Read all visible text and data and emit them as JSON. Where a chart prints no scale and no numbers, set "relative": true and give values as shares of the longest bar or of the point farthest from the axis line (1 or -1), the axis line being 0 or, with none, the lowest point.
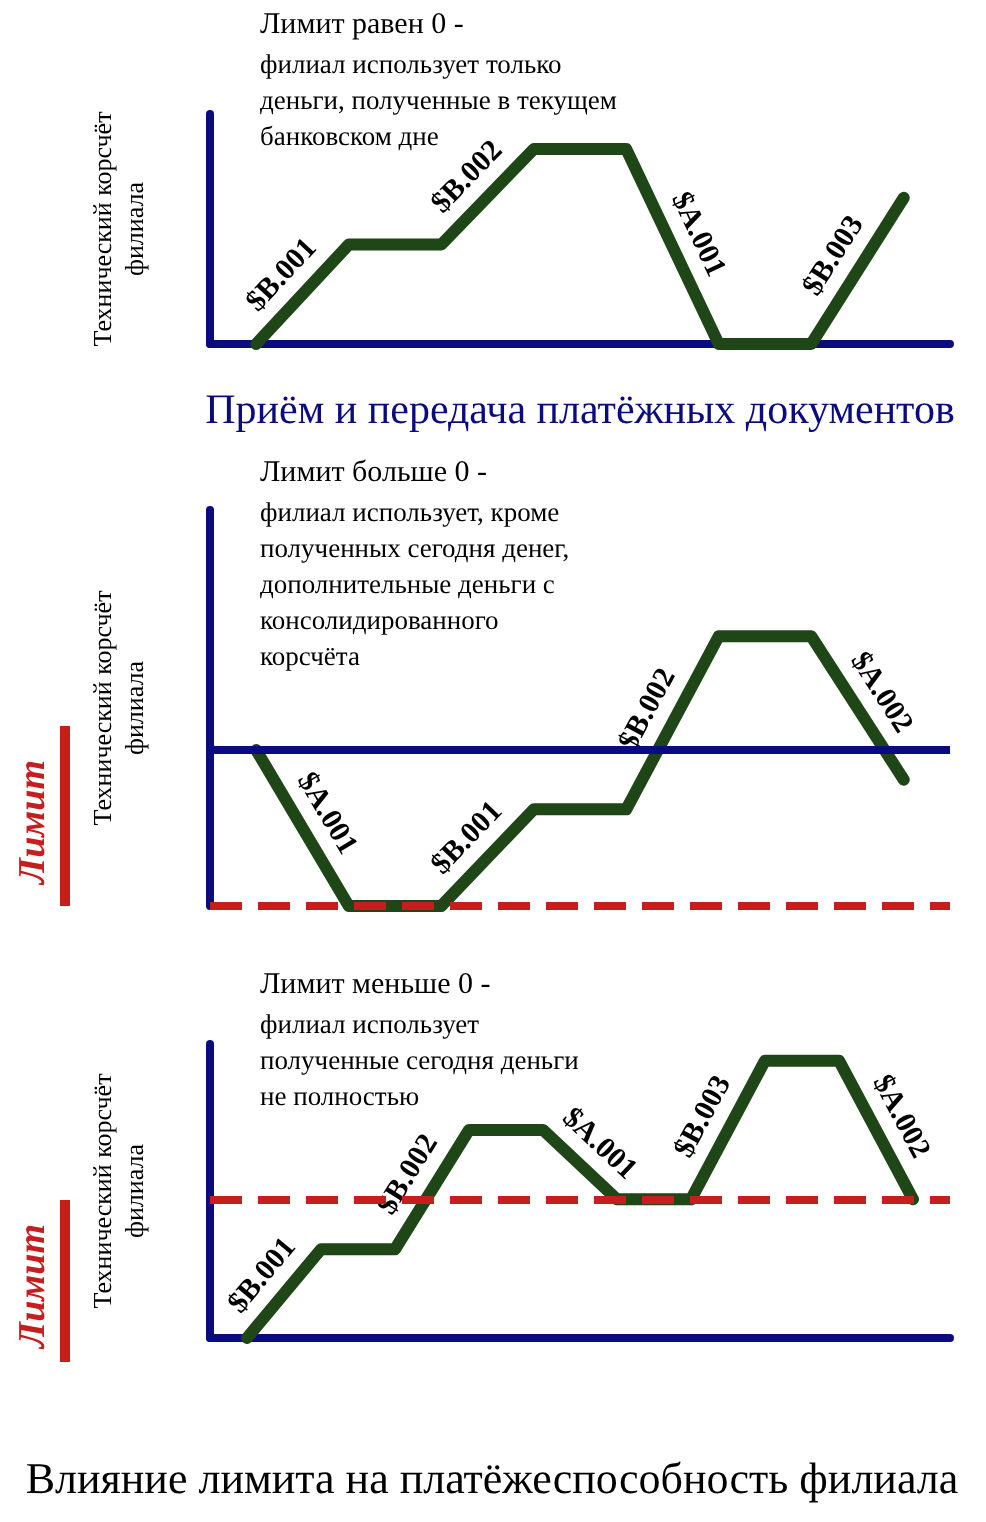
{
  "chart_data": [
    {
      "type": "line",
      "relative": true,
      "title": "Лимит равен 0 -",
      "subtitle": "филиал использует только деньги, полученные в текущем банковском дне",
      "xlabel": "Приём и передача платёжных документов",
      "ylabel": "Технический корсчёт филиала",
      "categories": [
        null,
        null,
        null,
        null,
        null,
        null,
        null,
        null
      ],
      "series": [
        {
          "color": "#1e4616",
          "values": [
            0,
            0.51,
            0.51,
            1,
            1,
            0,
            0,
            0.75
          ]
        }
      ],
      "annotations": [
        "$B.001",
        "$B.002",
        "$A.001",
        "$B.003"
      ],
      "marker": "none"
    },
    {
      "type": "line",
      "relative": true,
      "title": "Лимит больше 0 -",
      "subtitle": "филиал использует, кроме полученных сегодня денег, дополнительные деньги с консолидированного корсчёта",
      "ylabel": "Технический корсчёт филиала",
      "categories": [
        null,
        null,
        null,
        null,
        null,
        null,
        null,
        null
      ],
      "series": [
        {
          "color": "#1e4616",
          "values": [
            0,
            -1,
            -1,
            -0.38,
            -0.38,
            0.73,
            0.73,
            -0.19
          ]
        }
      ],
      "ref_lines": [
        {
          "axis": "y",
          "value": -1,
          "label": "Лимит",
          "color": "#c41e1e",
          "line_style": "dashed"
        },
        {
          "axis": "y",
          "value": 0,
          "color": "#0b0b80",
          "line_style": "solid"
        }
      ],
      "annotations": [
        "$A.001",
        "$B.001",
        "$B.002",
        "$A.002"
      ],
      "marker": "none"
    },
    {
      "type": "line",
      "relative": true,
      "title": "Лимит меньше 0 -",
      "subtitle": "филиал использует полученные сегодня деньги не полностью",
      "ylabel": "Технический корсчёт филиала",
      "categories": [
        null,
        null,
        null,
        null,
        null,
        null,
        null,
        null,
        null,
        null
      ],
      "series": [
        {
          "color": "#1e4616",
          "values": [
            0,
            0.32,
            0.32,
            0.75,
            0.75,
            0.5,
            0.5,
            1,
            1,
            0.5
          ]
        }
      ],
      "ref_lines": [
        {
          "axis": "y",
          "value": 0.5,
          "label": "Лимит",
          "color": "#c41e1e",
          "line_style": "dashed"
        }
      ],
      "annotations": [
        "$B.001",
        "$B.002",
        "$A.001",
        "$B.003",
        "$A.002",
        "Влияние лимита на платёжеспособность филиала"
      ],
      "marker": "none"
    }
  ]
}
